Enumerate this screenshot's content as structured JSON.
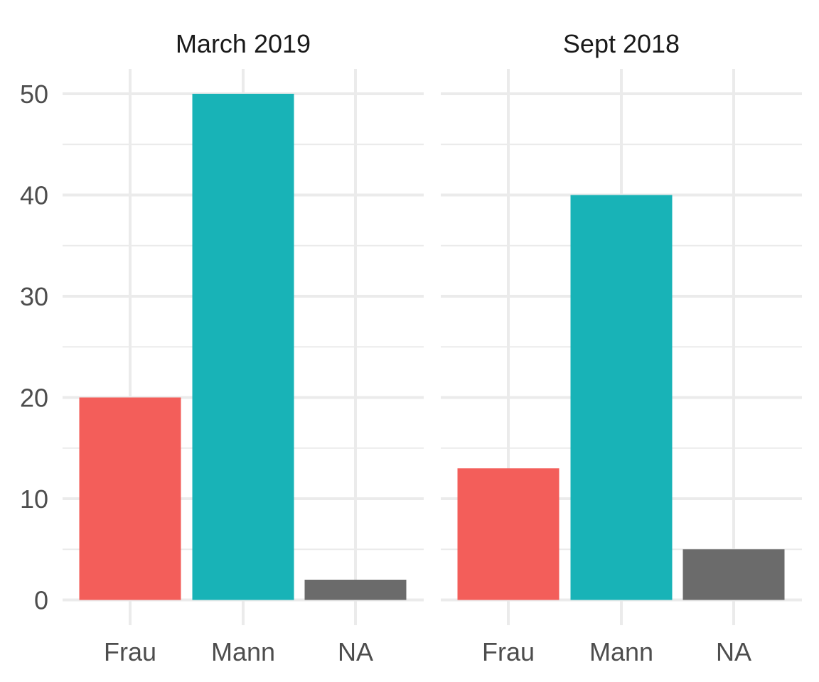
{
  "chart_data": {
    "type": "bar",
    "categories": [
      "Frau",
      "Mann",
      "NA"
    ],
    "colors": {
      "Frau": "#F35E5A",
      "Mann": "#18B3B7",
      "NA": "#6B6B6B"
    },
    "ylim": [
      0,
      52
    ],
    "yticks": [
      0,
      10,
      20,
      30,
      40,
      50
    ],
    "grid": true,
    "legend": "none",
    "panels": [
      {
        "title": "March 2019",
        "values": [
          20,
          50,
          2
        ]
      },
      {
        "title": "Sept 2018",
        "values": [
          13,
          40,
          5
        ]
      }
    ]
  }
}
